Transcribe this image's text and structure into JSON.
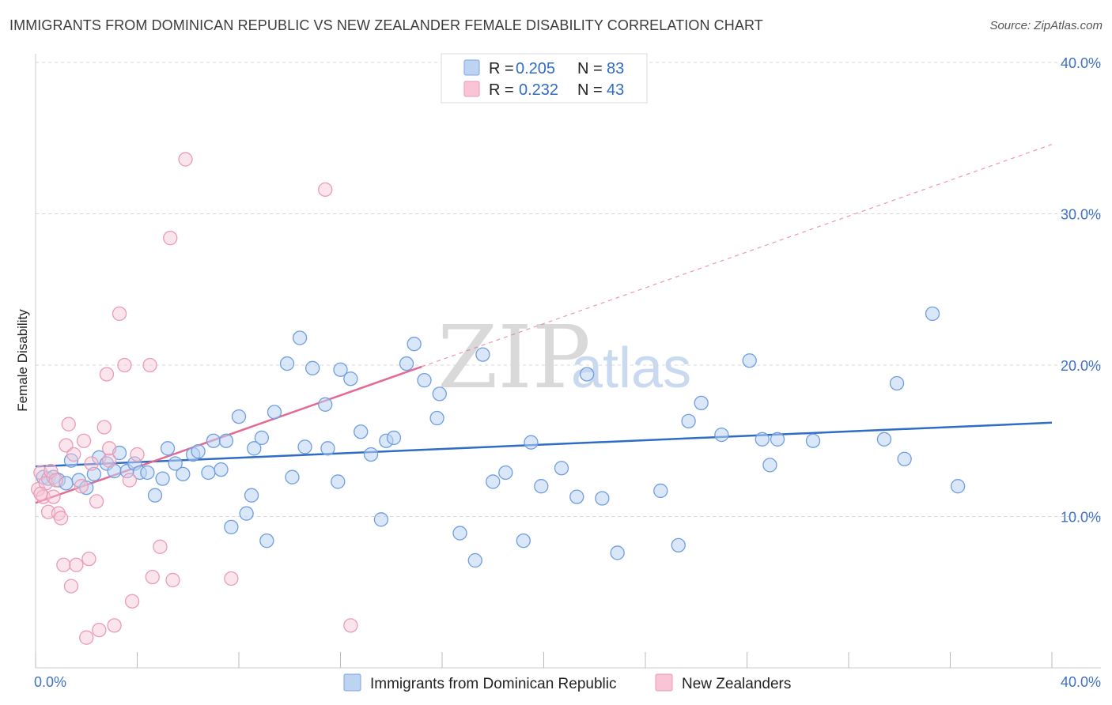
{
  "title": "IMMIGRANTS FROM DOMINICAN REPUBLIC VS NEW ZEALANDER FEMALE DISABILITY CORRELATION CHART",
  "source": "Source: ZipAtlas.com",
  "watermark": {
    "zip": "ZIP",
    "atlas": "atlas"
  },
  "colors": {
    "blue": "#2f6cc6",
    "blue_fill": "#bcd3f2",
    "pink": "#e46a94",
    "pink_fill": "#f7c5d5",
    "grid": "#d8d8d8",
    "tick": "#3d72c4"
  },
  "legend": {
    "rows": [
      {
        "r_label": "R =",
        "r_value": "0.205",
        "n_label": "N =",
        "n_value": "83"
      },
      {
        "r_label": "R =",
        "r_value": "0.232",
        "n_label": "N =",
        "n_value": "43"
      }
    ]
  },
  "chart_data": {
    "type": "scatter",
    "xlabel": "",
    "ylabel": "Female Disability",
    "xlim": [
      0,
      40
    ],
    "ylim": [
      0,
      40
    ],
    "x_tick_labels": [
      "0.0%",
      "40.0%"
    ],
    "y_ticks": [
      10,
      20,
      30,
      40
    ],
    "y_tick_labels": [
      "10.0%",
      "20.0%",
      "30.0%",
      "40.0%"
    ],
    "grid": true,
    "legend_position": "top-center",
    "series": [
      {
        "name": "Immigrants from Dominican Republic",
        "color": "blue",
        "r": 0.205,
        "n": 83,
        "trend": {
          "x0": 0,
          "y0": 13.3,
          "x1": 40,
          "y1": 16.2,
          "dashed_to": 40
        },
        "points": [
          [
            0.3,
            12.6
          ],
          [
            0.5,
            12.5
          ],
          [
            0.7,
            12.6
          ],
          [
            0.9,
            12.4
          ],
          [
            1.2,
            12.2
          ],
          [
            1.4,
            13.7
          ],
          [
            1.7,
            12.4
          ],
          [
            2.0,
            11.9
          ],
          [
            2.3,
            12.8
          ],
          [
            2.5,
            13.9
          ],
          [
            2.8,
            13.5
          ],
          [
            3.1,
            13.0
          ],
          [
            3.3,
            14.2
          ],
          [
            3.6,
            13.0
          ],
          [
            3.9,
            13.5
          ],
          [
            4.1,
            12.9
          ],
          [
            4.4,
            12.9
          ],
          [
            4.7,
            11.4
          ],
          [
            5.0,
            12.5
          ],
          [
            5.2,
            14.5
          ],
          [
            5.5,
            13.5
          ],
          [
            5.8,
            12.8
          ],
          [
            6.2,
            14.1
          ],
          [
            6.4,
            14.3
          ],
          [
            6.8,
            12.9
          ],
          [
            7.0,
            15.0
          ],
          [
            7.3,
            13.1
          ],
          [
            7.5,
            15.0
          ],
          [
            7.7,
            9.3
          ],
          [
            8.0,
            16.6
          ],
          [
            8.3,
            10.2
          ],
          [
            8.5,
            11.4
          ],
          [
            8.6,
            14.5
          ],
          [
            8.9,
            15.2
          ],
          [
            9.1,
            8.4
          ],
          [
            9.4,
            16.9
          ],
          [
            9.9,
            20.1
          ],
          [
            10.1,
            12.6
          ],
          [
            10.4,
            21.8
          ],
          [
            10.6,
            14.6
          ],
          [
            10.9,
            19.8
          ],
          [
            11.4,
            17.4
          ],
          [
            11.5,
            14.5
          ],
          [
            11.9,
            12.3
          ],
          [
            12.0,
            19.7
          ],
          [
            12.4,
            19.1
          ],
          [
            12.8,
            15.6
          ],
          [
            13.2,
            14.1
          ],
          [
            13.6,
            9.8
          ],
          [
            13.8,
            15.0
          ],
          [
            14.1,
            15.2
          ],
          [
            14.6,
            20.1
          ],
          [
            14.9,
            21.4
          ],
          [
            15.3,
            19.0
          ],
          [
            15.8,
            16.5
          ],
          [
            15.9,
            18.1
          ],
          [
            16.7,
            8.9
          ],
          [
            17.3,
            7.1
          ],
          [
            17.6,
            20.7
          ],
          [
            18.0,
            12.3
          ],
          [
            18.5,
            12.9
          ],
          [
            19.2,
            8.4
          ],
          [
            19.5,
            14.9
          ],
          [
            19.9,
            12.0
          ],
          [
            20.7,
            13.2
          ],
          [
            21.3,
            11.3
          ],
          [
            21.7,
            19.4
          ],
          [
            22.3,
            11.2
          ],
          [
            22.9,
            7.6
          ],
          [
            24.6,
            11.7
          ],
          [
            25.3,
            8.1
          ],
          [
            25.7,
            16.3
          ],
          [
            26.2,
            17.5
          ],
          [
            27.0,
            15.4
          ],
          [
            28.1,
            20.3
          ],
          [
            28.6,
            15.1
          ],
          [
            28.9,
            13.4
          ],
          [
            29.2,
            15.1
          ],
          [
            30.6,
            15.0
          ],
          [
            33.4,
            15.1
          ],
          [
            33.9,
            18.8
          ],
          [
            34.2,
            13.8
          ],
          [
            35.3,
            23.4
          ],
          [
            36.3,
            12.0
          ]
        ]
      },
      {
        "name": "New Zealanders",
        "color": "pink",
        "r": 0.232,
        "n": 43,
        "trend": {
          "x0": 0,
          "y0": 10.9,
          "x1": 15.2,
          "y1": 19.9,
          "dashed_to": 40
        },
        "points": [
          [
            0.1,
            11.8
          ],
          [
            0.2,
            12.9
          ],
          [
            0.3,
            11.3
          ],
          [
            0.4,
            12.2
          ],
          [
            0.5,
            10.3
          ],
          [
            0.6,
            13.0
          ],
          [
            0.7,
            11.3
          ],
          [
            0.8,
            12.4
          ],
          [
            0.9,
            10.2
          ],
          [
            1.0,
            9.9
          ],
          [
            1.1,
            6.8
          ],
          [
            1.2,
            14.7
          ],
          [
            1.3,
            16.1
          ],
          [
            1.4,
            5.4
          ],
          [
            1.5,
            14.1
          ],
          [
            1.6,
            6.8
          ],
          [
            1.8,
            12.0
          ],
          [
            1.9,
            15.0
          ],
          [
            2.0,
            2.0
          ],
          [
            2.1,
            7.2
          ],
          [
            2.2,
            13.5
          ],
          [
            2.4,
            11.0
          ],
          [
            2.5,
            2.5
          ],
          [
            2.7,
            15.9
          ],
          [
            2.8,
            19.4
          ],
          [
            2.9,
            13.7
          ],
          [
            2.9,
            14.5
          ],
          [
            3.1,
            2.8
          ],
          [
            3.3,
            23.4
          ],
          [
            3.5,
            20.0
          ],
          [
            3.7,
            12.4
          ],
          [
            3.8,
            4.4
          ],
          [
            4.0,
            14.1
          ],
          [
            4.5,
            20.0
          ],
          [
            4.6,
            6.0
          ],
          [
            4.9,
            8.0
          ],
          [
            5.3,
            28.4
          ],
          [
            5.4,
            5.8
          ],
          [
            5.9,
            33.6
          ],
          [
            7.7,
            5.9
          ],
          [
            11.4,
            31.6
          ],
          [
            12.4,
            2.8
          ],
          [
            0.2,
            11.5
          ]
        ]
      }
    ]
  },
  "bottom_legend": {
    "items": [
      {
        "label": "Immigrants from Dominican Republic"
      },
      {
        "label": "New Zealanders"
      }
    ]
  }
}
